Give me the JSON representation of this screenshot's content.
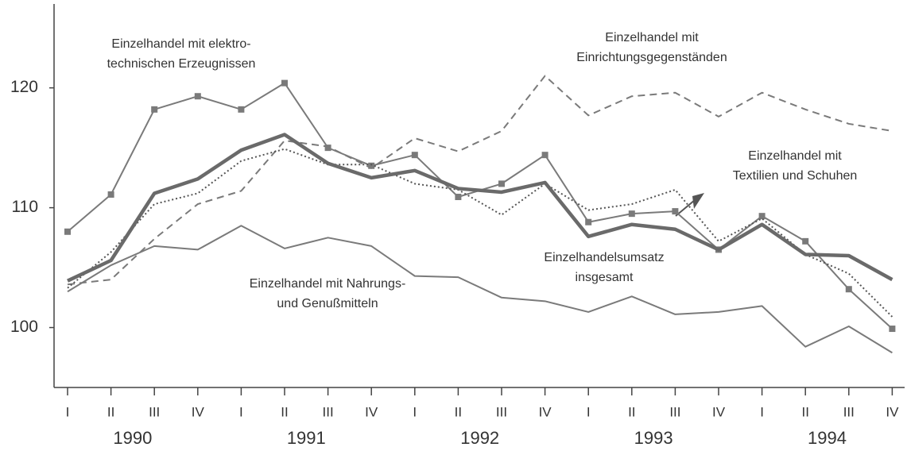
{
  "chart_data": {
    "type": "line",
    "categories": [
      "I",
      "II",
      "III",
      "IV",
      "I",
      "II",
      "III",
      "IV",
      "I",
      "II",
      "III",
      "IV",
      "I",
      "II",
      "III",
      "IV",
      "I",
      "II",
      "III",
      "IV"
    ],
    "year_labels": [
      "1990",
      "1991",
      "1992",
      "1993",
      "1994"
    ],
    "ylim": [
      95,
      127
    ],
    "yticks": [
      100,
      110,
      120
    ],
    "series": [
      {
        "color": "#7a7a7a",
        "style": "solid-markers",
        "values": [
          108.0,
          111.1,
          118.2,
          119.3,
          118.2,
          120.4,
          115.0,
          113.5,
          114.4,
          110.9,
          112.0,
          114.4,
          108.8,
          109.5,
          109.7,
          106.5,
          109.3,
          107.2,
          103.2,
          99.9
        ]
      },
      {
        "color": "#7a7a7a",
        "style": "dashed",
        "values": [
          103.6,
          104.0,
          107.4,
          110.3,
          111.4,
          115.6,
          115.1,
          113.3,
          115.8,
          114.7,
          116.4,
          121.0,
          117.7,
          119.3,
          119.6,
          117.6,
          119.6,
          118.2,
          117.0,
          116.4
        ]
      },
      {
        "color": "#555555",
        "style": "dotted",
        "values": [
          103.3,
          106.3,
          110.3,
          111.2,
          113.9,
          114.9,
          113.6,
          113.6,
          112.0,
          111.5,
          109.4,
          112.0,
          109.8,
          110.3,
          111.5,
          107.2,
          109.1,
          106.1,
          104.5,
          100.9
        ]
      },
      {
        "color": "#6a6a6a",
        "style": "thick",
        "values": [
          103.9,
          105.6,
          111.2,
          112.4,
          114.8,
          116.1,
          113.7,
          112.5,
          113.1,
          111.6,
          111.3,
          112.1,
          107.6,
          108.6,
          108.2,
          106.5,
          108.6,
          106.1,
          106.0,
          104.0
        ]
      },
      {
        "color": "#7a7a7a",
        "style": "solid",
        "values": [
          103.0,
          105.2,
          106.8,
          106.5,
          108.5,
          106.6,
          107.5,
          106.8,
          104.3,
          104.2,
          102.5,
          102.2,
          101.3,
          102.6,
          101.1,
          101.3,
          101.8,
          98.4,
          100.1,
          97.9
        ]
      }
    ],
    "annotations": [
      {
        "lines": [
          "Einzelhandel mit elektro-",
          "technischen Erzeugnissen"
        ]
      },
      {
        "lines": [
          "Einzelhandel mit",
          "Einrichtungsgegenständen"
        ]
      },
      {
        "lines": [
          "Einzelhandel mit",
          "Textilien und Schuhen"
        ]
      },
      {
        "lines": [
          "Einzelhandelsumsatz",
          "insgesamt"
        ]
      },
      {
        "lines": [
          "Einzelhandel mit Nahrungs-",
          "und Genußmitteln"
        ]
      }
    ]
  }
}
